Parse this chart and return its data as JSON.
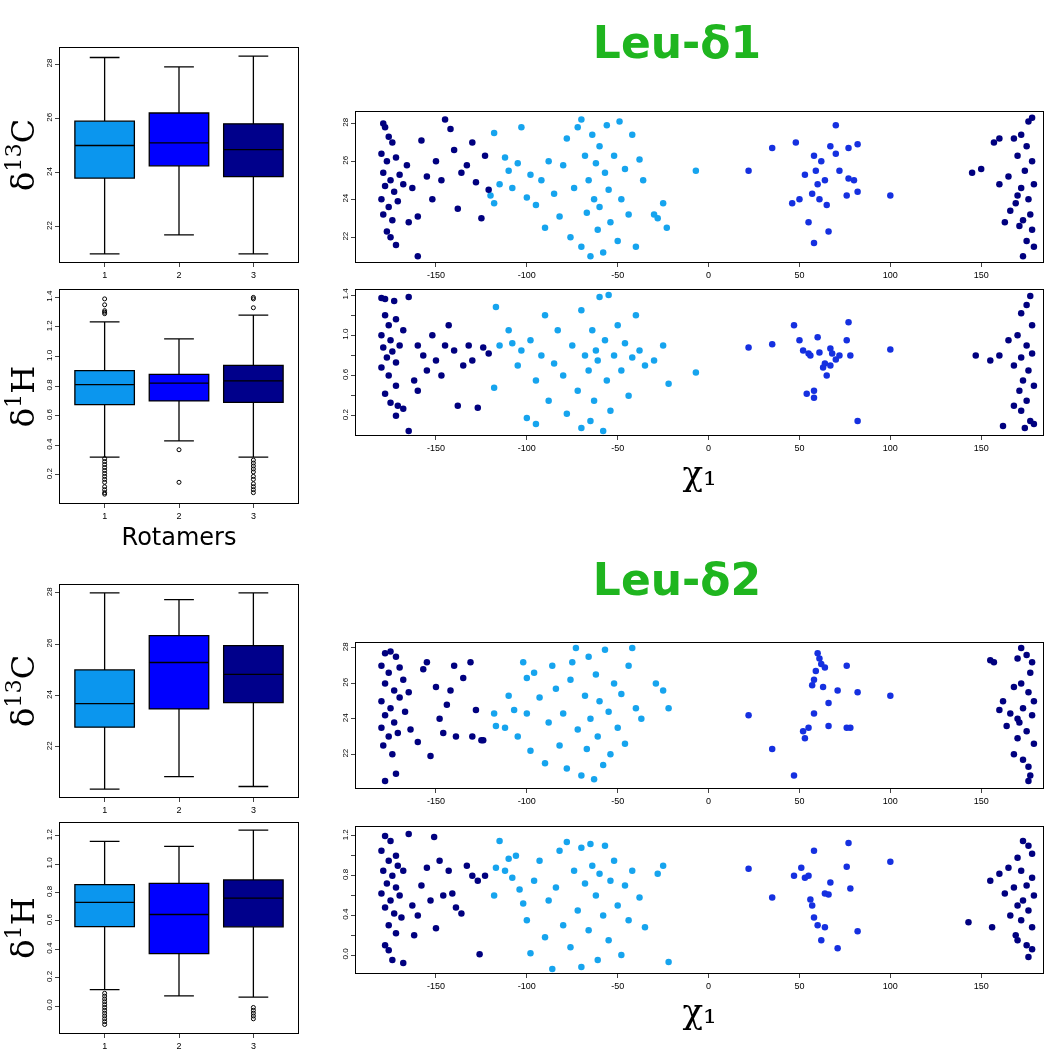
{
  "chart_data": [
    {
      "type": "box",
      "ylabel": "δ$^{13}$C",
      "categories": [
        "1",
        "2",
        "3"
      ],
      "colors": [
        "#0b96ee",
        "#0000ff",
        "#00008b"
      ],
      "ylim": [
        20.7,
        28.6
      ],
      "yticks": [
        22,
        24,
        26,
        28
      ],
      "boxes": [
        {
          "low": 21.0,
          "q1": 23.8,
          "median": 25.0,
          "q3": 25.9,
          "high": 28.25
        },
        {
          "low": 21.7,
          "q1": 24.25,
          "median": 25.1,
          "q3": 26.2,
          "high": 27.9
        },
        {
          "low": 21.0,
          "q1": 23.85,
          "median": 24.85,
          "q3": 25.8,
          "high": 28.3
        }
      ]
    },
    {
      "type": "scatter",
      "title": "Leu-δ1",
      "marker": "circle",
      "xlim": [
        -194,
        184
      ],
      "xticks": [
        -150,
        -100,
        -50,
        0,
        50,
        100,
        150
      ],
      "ylim": [
        20.7,
        28.6
      ],
      "yticks": [
        22,
        24,
        26,
        28
      ],
      "series": [
        {
          "color": "#16a4ee",
          "x": [
            -118,
            -115,
            -112,
            -110,
            -108,
            -105,
            -103,
            -100,
            -98,
            -95,
            -92,
            -90,
            -88,
            -85,
            -82,
            -80,
            -78,
            -76,
            -74,
            -72,
            -70,
            -70,
            -68,
            -67,
            -66,
            -65,
            -64,
            -63,
            -62,
            -61,
            -60,
            -60,
            -58,
            -57,
            -56,
            -55,
            -54,
            -52,
            -50,
            -49,
            -48,
            -46,
            -44,
            -42,
            -40,
            -38,
            -36,
            -30,
            -28,
            -25,
            -23,
            -120,
            -118,
            -7
          ],
          "values": [
            27.5,
            24.8,
            26.2,
            25.5,
            24.6,
            25.9,
            27.8,
            24.1,
            25.3,
            23.7,
            25.0,
            22.5,
            26.0,
            24.3,
            23.1,
            25.8,
            27.2,
            22.0,
            24.6,
            27.8,
            28.2,
            21.5,
            26.3,
            23.3,
            25.0,
            21.0,
            27.4,
            24.0,
            25.9,
            22.4,
            26.8,
            23.6,
            21.2,
            25.4,
            27.9,
            24.5,
            22.8,
            26.3,
            21.8,
            28.1,
            24.0,
            25.6,
            23.2,
            27.4,
            21.5,
            26.1,
            25.0,
            23.2,
            23.0,
            23.8,
            22.5,
            24.2,
            23.8,
            25.5
          ]
        },
        {
          "color": "#1530e0",
          "x": [
            22,
            35,
            48,
            46,
            50,
            53,
            55,
            57,
            58,
            58,
            59,
            60,
            61,
            62,
            64,
            65,
            66,
            67,
            70,
            70,
            72,
            76,
            77,
            77,
            80,
            82,
            82,
            100
          ],
          "values": [
            25.5,
            26.7,
            27.0,
            23.8,
            24.0,
            25.3,
            22.8,
            24.3,
            21.7,
            26.3,
            25.5,
            24.8,
            24.0,
            26.0,
            25.0,
            23.7,
            22.3,
            26.8,
            27.9,
            26.4,
            25.5,
            24.2,
            26.7,
            25.1,
            25.0,
            26.9,
            24.4,
            24.2
          ]
        },
        {
          "color": "#00007f",
          "x": [
            -179,
            -178,
            -176,
            -174,
            -180,
            -177,
            -172,
            -179,
            -175,
            -170,
            -178,
            -173,
            -168,
            -180,
            -176,
            -171,
            -179,
            -174,
            -177,
            -175,
            -172,
            -166,
            -163,
            -160,
            -158,
            -155,
            -152,
            -150,
            -147,
            -145,
            -142,
            -140,
            -138,
            -136,
            -133,
            -130,
            -128,
            -125,
            -123,
            -121,
            -160,
            -165,
            178,
            176,
            172,
            168,
            160,
            157,
            150,
            145,
            160,
            165,
            170,
            175,
            178,
            174,
            179,
            172,
            176,
            169,
            177,
            173,
            178,
            171,
            175,
            179,
            173,
            166,
            163,
            170
          ],
          "values": [
            28.0,
            27.8,
            27.3,
            27.0,
            26.4,
            26.0,
            26.2,
            25.4,
            25.0,
            25.3,
            24.7,
            24.4,
            24.8,
            24.0,
            23.6,
            23.9,
            23.2,
            22.9,
            22.3,
            22.0,
            21.6,
            25.8,
            24.6,
            23.1,
            27.1,
            25.2,
            24.0,
            26.0,
            25.0,
            28.2,
            27.7,
            26.6,
            23.5,
            25.4,
            25.8,
            27.0,
            24.9,
            23.0,
            26.3,
            24.5,
            21.0,
            22.8,
            28.3,
            28.1,
            27.4,
            27.2,
            27.2,
            27.0,
            25.6,
            25.4,
            24.8,
            25.2,
            26.3,
            26.8,
            26.0,
            25.5,
            24.8,
            24.6,
            24.0,
            23.8,
            23.2,
            22.9,
            22.4,
            22.6,
            21.8,
            21.5,
            21.0,
            23.4,
            22.8,
            24.2
          ]
        }
      ]
    },
    {
      "type": "box",
      "ylabel": "δ$^{1}$H",
      "xlabel": "Rotamers",
      "categories": [
        "1",
        "2",
        "3"
      ],
      "colors": [
        "#0b96ee",
        "#0000ff",
        "#00008b"
      ],
      "ylim": [
        0.01,
        1.45
      ],
      "yticks": [
        0.2,
        0.4,
        0.6,
        0.8,
        {
          "value": 1,
          "label": "1.0"
        },
        1.2,
        1.4
      ],
      "boxes": [
        {
          "low": 0.32,
          "q1": 0.675,
          "median": 0.81,
          "q3": 0.905,
          "high": 1.235,
          "outliers": [
            1.39,
            1.35,
            1.31,
            1.3,
            1.29,
            0.31,
            0.29,
            0.27,
            0.25,
            0.23,
            0.21,
            0.19,
            0.17,
            0.15,
            0.12,
            0.1,
            0.08,
            0.07
          ]
        },
        {
          "low": 0.43,
          "q1": 0.7,
          "median": 0.82,
          "q3": 0.88,
          "high": 1.12,
          "outliers": [
            0.37,
            0.15
          ]
        },
        {
          "low": 0.32,
          "q1": 0.69,
          "median": 0.835,
          "q3": 0.94,
          "high": 1.28,
          "outliers": [
            1.4,
            1.39,
            1.33,
            0.3,
            0.28,
            0.26,
            0.24,
            0.22,
            0.19,
            0.17,
            0.14,
            0.12,
            0.1,
            0.08
          ]
        }
      ]
    },
    {
      "type": "scatter",
      "xlabel": "χ₁",
      "marker": "circle",
      "xlim": [
        -194,
        184
      ],
      "xticks": [
        -150,
        -100,
        -50,
        0,
        50,
        100,
        150
      ],
      "ylim": [
        0.01,
        1.45
      ],
      "yticks": [
        0.2,
        {
          "value": 0.4,
          "label": null
        },
        0.6,
        {
          "value": 0.8,
          "label": null
        },
        {
          "value": 1,
          "label": "1.0"
        },
        {
          "value": 1.2,
          "label": null
        },
        1.4
      ],
      "series": [
        {
          "color": "#16a4ee",
          "x": [
            -118,
            -117,
            -115,
            -110,
            -108,
            -105,
            -103,
            -100,
            -98,
            -95,
            -92,
            -90,
            -88,
            -85,
            -83,
            -80,
            -78,
            -75,
            -72,
            -70,
            -70,
            -68,
            -66,
            -65,
            -64,
            -63,
            -62,
            -61,
            -60,
            -58,
            -57,
            -56,
            -55,
            -54,
            -52,
            -50,
            -48,
            -46,
            -44,
            -42,
            -40,
            -38,
            -35,
            -30,
            -25,
            -22,
            -7,
            -95
          ],
          "values": [
            0.48,
            1.28,
            0.9,
            1.05,
            0.92,
            0.7,
            0.85,
            0.18,
            0.95,
            0.55,
            0.8,
            1.2,
            0.35,
            0.72,
            1.05,
            0.6,
            0.22,
            0.9,
            0.45,
            1.25,
            0.08,
            0.8,
            0.65,
            0.15,
            1.05,
            0.35,
            0.85,
            0.75,
            1.38,
            0.05,
            0.95,
            0.55,
            1.4,
            0.25,
            0.8,
            1.1,
            0.65,
            0.92,
            0.4,
            0.78,
            1.2,
            0.85,
            0.7,
            0.75,
            0.9,
            0.52,
            0.63,
            0.12
          ]
        },
        {
          "color": "#1530e0",
          "x": [
            22,
            35,
            47,
            50,
            52,
            55,
            56,
            54,
            58,
            60,
            61,
            63,
            64,
            65,
            67,
            67,
            68,
            70,
            72,
            76,
            77,
            78,
            82,
            100,
            58
          ],
          "values": [
            0.88,
            0.91,
            1.1,
            0.95,
            0.85,
            0.82,
            0.8,
            0.42,
            0.45,
            0.98,
            0.83,
            0.68,
            0.72,
            0.6,
            0.87,
            0.7,
            0.82,
            0.76,
            0.8,
            0.95,
            1.13,
            0.8,
            0.15,
            0.86,
            0.38
          ]
        },
        {
          "color": "#00007f",
          "x": [
            -180,
            -178,
            -173,
            -165,
            -178,
            -176,
            -172,
            -180,
            -175,
            -168,
            -179,
            -174,
            -170,
            -177,
            -172,
            -180,
            -176,
            -172,
            -178,
            -175,
            -171,
            -168,
            -172,
            -165,
            -162,
            -160,
            -157,
            -155,
            -152,
            -150,
            -147,
            -145,
            -143,
            -140,
            -138,
            -135,
            -132,
            -130,
            -127,
            -124,
            -121,
            -160,
            177,
            175,
            172,
            178,
            170,
            165,
            160,
            155,
            147,
            175,
            178,
            172,
            168,
            176,
            173,
            179,
            171,
            175,
            168,
            172,
            177,
            162,
            174,
            179
          ],
          "values": [
            1.37,
            1.36,
            1.34,
            1.38,
            1.2,
            1.1,
            1.16,
            1.0,
            0.95,
            1.05,
            0.88,
            0.84,
            0.9,
            0.78,
            0.73,
            0.68,
            0.6,
            0.5,
            0.42,
            0.33,
            0.3,
            0.27,
            0.2,
            0.05,
            0.55,
            0.9,
            0.8,
            0.65,
            1.0,
            0.75,
            0.6,
            0.9,
            1.1,
            0.85,
            0.3,
            0.7,
            0.9,
            0.75,
            0.28,
            0.88,
            0.82,
            0.45,
            1.39,
            1.3,
            1.22,
            1.1,
            1.0,
            0.95,
            0.8,
            0.75,
            0.8,
            0.9,
            0.82,
            0.78,
            0.7,
            0.65,
            0.55,
            0.5,
            0.45,
            0.35,
            0.3,
            0.25,
            0.15,
            0.1,
            0.08,
            0.12
          ]
        }
      ]
    },
    {
      "type": "box",
      "ylabel": "δ$^{13}$C",
      "categories": [
        "1",
        "2",
        "3"
      ],
      "colors": [
        "#0b96ee",
        "#0000ff",
        "#00008b"
      ],
      "ylim": [
        20.05,
        28.31
      ],
      "yticks": [
        22,
        24,
        26,
        28
      ],
      "boxes": [
        {
          "low": 20.36,
          "q1": 22.77,
          "median": 23.69,
          "q3": 25.0,
          "high": 28.0
        },
        {
          "low": 20.84,
          "q1": 23.48,
          "median": 25.29,
          "q3": 26.34,
          "high": 27.74
        },
        {
          "low": 20.46,
          "q1": 23.73,
          "median": 24.83,
          "q3": 25.95,
          "high": 28.0
        }
      ]
    },
    {
      "type": "scatter",
      "title": "Leu-δ2",
      "marker": "circle",
      "xlim": [
        -194,
        184
      ],
      "xticks": [
        -150,
        -100,
        -50,
        0,
        50,
        100,
        150
      ],
      "ylim": [
        20.1,
        28.28
      ],
      "yticks": [
        22,
        24,
        26,
        28
      ],
      "series": [
        {
          "color": "#16a4ee",
          "x": [
            -118,
            -117,
            -112,
            -110,
            -107,
            -105,
            -102,
            -100,
            -98,
            -96,
            -93,
            -90,
            -88,
            -86,
            -84,
            -82,
            -80,
            -78,
            -76,
            -75,
            -73,
            -72,
            -70,
            -68,
            -67,
            -66,
            -65,
            -63,
            -62,
            -61,
            -60,
            -58,
            -57,
            -55,
            -54,
            -52,
            -50,
            -48,
            -46,
            -44,
            -42,
            -40,
            -37,
            -29,
            -25,
            -22,
            -100
          ],
          "values": [
            24.3,
            23.6,
            23.5,
            25.3,
            24.5,
            23.0,
            27.2,
            24.3,
            22.2,
            26.6,
            25.2,
            21.5,
            23.8,
            27.0,
            25.7,
            22.5,
            24.3,
            21.2,
            26.2,
            27.2,
            28.0,
            23.4,
            20.8,
            25.3,
            22.3,
            27.5,
            24.0,
            20.6,
            26.5,
            23.0,
            25.0,
            21.4,
            27.9,
            24.4,
            22.0,
            26.0,
            23.5,
            25.4,
            22.6,
            27.0,
            28.0,
            24.6,
            24.0,
            26.0,
            25.6,
            24.6,
            26.3
          ]
        },
        {
          "color": "#1530e0",
          "x": [
            22,
            35,
            47,
            52,
            53,
            55,
            57,
            58,
            58,
            59,
            60,
            61,
            62,
            63,
            64,
            66,
            66,
            71,
            76,
            76,
            78,
            82,
            100
          ],
          "values": [
            24.2,
            22.3,
            20.8,
            23.3,
            22.9,
            23.5,
            25.9,
            24.3,
            26.2,
            26.7,
            27.7,
            27.4,
            27.1,
            25.8,
            26.9,
            24.9,
            23.6,
            25.6,
            23.5,
            27.0,
            23.5,
            25.5,
            25.3
          ]
        },
        {
          "color": "#00007f",
          "x": [
            -178,
            -175,
            -172,
            -180,
            -176,
            -170,
            -178,
            -173,
            -168,
            -180,
            -175,
            -170,
            -178,
            -173,
            -167,
            -180,
            -176,
            -171,
            -179,
            -174,
            -178,
            -172,
            -164,
            -160,
            -157,
            -155,
            -153,
            -150,
            -148,
            -146,
            -144,
            -142,
            -140,
            -139,
            -135,
            -131,
            -130,
            -128,
            -125,
            -124,
            -165,
            172,
            175,
            178,
            170,
            155,
            157,
            177,
            172,
            176,
            168,
            179,
            173,
            160,
            162,
            166,
            178,
            171,
            175,
            170,
            179,
            168,
            173,
            176,
            177,
            176,
            164,
            170
          ],
          "values": [
            27.7,
            27.8,
            27.5,
            27.0,
            26.6,
            26.9,
            26.0,
            25.6,
            26.2,
            25.0,
            24.6,
            25.2,
            24.2,
            23.8,
            24.4,
            23.5,
            23.0,
            23.2,
            22.5,
            22.0,
            20.5,
            20.9,
            23.4,
            22.7,
            26.8,
            27.2,
            21.9,
            25.8,
            24.0,
            23.2,
            24.8,
            25.6,
            27.0,
            23.0,
            26.3,
            27.2,
            23.0,
            24.5,
            22.8,
            22.8,
            25.5,
            28.0,
            27.6,
            27.2,
            27.4,
            27.3,
            27.2,
            26.6,
            26.0,
            25.5,
            25.8,
            25.0,
            24.6,
            24.5,
            25.0,
            24.3,
            24.2,
            23.8,
            23.3,
            22.9,
            22.6,
            22.0,
            21.7,
            21.3,
            20.8,
            20.5,
            23.6,
            24.0
          ]
        }
      ]
    },
    {
      "type": "box",
      "ylabel": "δ$^{1}$H",
      "categories": [
        "1",
        "2",
        "3"
      ],
      "colors": [
        "#0b96ee",
        "#0000ff",
        "#00008b"
      ],
      "ylim": [
        -0.19,
        1.29
      ],
      "yticks": [
        {
          "value": 0,
          "label": "0.0"
        },
        0.2,
        0.4,
        0.6,
        0.8,
        {
          "value": 1,
          "label": "1.0"
        },
        1.2
      ],
      "boxes": [
        {
          "low": 0.116,
          "q1": 0.56,
          "median": 0.73,
          "q3": 0.856,
          "high": 1.16,
          "outliers": [
            0.09,
            0.07,
            0.05,
            0.03,
            0.01,
            -0.01,
            -0.03,
            -0.05,
            -0.07,
            -0.09,
            -0.11,
            -0.13
          ]
        },
        {
          "low": 0.072,
          "q1": 0.37,
          "median": 0.645,
          "q3": 0.865,
          "high": 1.125
        },
        {
          "low": 0.063,
          "q1": 0.558,
          "median": 0.76,
          "q3": 0.889,
          "high": 1.24,
          "outliers": [
            -0.01,
            -0.03,
            -0.05,
            -0.07,
            -0.09
          ]
        }
      ]
    },
    {
      "type": "scatter",
      "xlabel": "χ₁",
      "marker": "circle",
      "xlim": [
        -194,
        184
      ],
      "xticks": [
        -150,
        -100,
        -50,
        0,
        50,
        100,
        150
      ],
      "ylim": [
        -0.18,
        1.29
      ],
      "yticks": [
        {
          "value": 0,
          "label": "0.0"
        },
        {
          "value": 0.2,
          "label": null
        },
        0.4,
        {
          "value": 0.6,
          "label": null
        },
        0.8,
        {
          "value": 1.0,
          "label": null
        },
        1.2
      ],
      "series": [
        {
          "color": "#16a4ee",
          "x": [
            -118,
            -117,
            -115,
            -112,
            -110,
            -108,
            -106,
            -104,
            -102,
            -100,
            -98,
            -96,
            -93,
            -90,
            -88,
            -86,
            -84,
            -82,
            -80,
            -78,
            -76,
            -74,
            -72,
            -70,
            -70,
            -68,
            -66,
            -65,
            -64,
            -62,
            -61,
            -60,
            -58,
            -57,
            -55,
            -54,
            -52,
            -50,
            -48,
            -46,
            -44,
            -42,
            -38,
            -35,
            -28,
            -25,
            -22
          ],
          "values": [
            0.6,
            0.88,
            1.15,
            0.85,
            0.97,
            0.78,
            1.0,
            0.66,
            0.52,
            0.35,
            0.02,
            0.75,
            0.95,
            0.18,
            0.55,
            -0.14,
            0.68,
            1.05,
            0.3,
            1.14,
            0.08,
            0.85,
            0.45,
            1.08,
            -0.12,
            0.72,
            0.25,
            1.12,
            0.9,
            0.6,
            -0.05,
            0.82,
            0.4,
            1.1,
            0.15,
            0.75,
            0.95,
            0.5,
            0.0,
            0.7,
            0.35,
            0.85,
            0.58,
            0.28,
            0.82,
            0.9,
            -0.07
          ]
        },
        {
          "color": "#1530e0",
          "x": [
            22,
            35,
            47,
            51,
            53,
            55,
            56,
            57,
            58,
            58,
            60,
            62,
            64,
            64,
            66,
            67,
            71,
            76,
            77,
            78,
            82,
            100
          ],
          "values": [
            0.87,
            0.58,
            0.8,
            0.88,
            0.78,
            0.8,
            0.56,
            0.5,
            0.38,
            1.05,
            0.3,
            0.15,
            0.28,
            0.62,
            0.61,
            0.73,
            0.07,
            0.89,
            1.13,
            0.67,
            0.24,
            0.94
          ]
        },
        {
          "color": "#00007f",
          "x": [
            -178,
            -175,
            -172,
            -180,
            -165,
            -176,
            -171,
            -179,
            -174,
            -168,
            -177,
            -172,
            -180,
            -175,
            -170,
            -178,
            -173,
            -169,
            -176,
            -172,
            -178,
            -176,
            -174,
            -168,
            -163,
            -160,
            -158,
            -155,
            -153,
            -151,
            -150,
            -148,
            -146,
            -143,
            -141,
            -139,
            -136,
            -133,
            -130,
            -127,
            -126,
            -123,
            -162,
            173,
            176,
            178,
            170,
            165,
            160,
            155,
            172,
            178,
            175,
            168,
            179,
            173,
            163,
            166,
            170,
            176,
            172,
            178,
            169,
            175,
            178,
            176,
            156,
            143,
            170
          ],
          "values": [
            1.2,
            1.15,
            1.0,
            1.05,
            1.22,
            0.95,
            0.9,
            0.85,
            0.8,
            0.85,
            0.72,
            0.68,
            0.62,
            0.55,
            0.6,
            0.48,
            0.42,
            0.38,
            0.3,
            0.22,
            0.1,
            0.05,
            -0.05,
            -0.08,
            0.5,
            0.4,
            0.7,
            0.88,
            0.55,
            1.19,
            0.27,
            0.95,
            0.6,
            0.85,
            0.62,
            0.48,
            0.42,
            0.9,
            0.8,
            0.75,
            0.01,
            0.8,
            0.2,
            1.15,
            1.1,
            1.02,
            0.98,
            0.88,
            0.82,
            0.75,
            0.85,
            0.78,
            0.7,
            0.68,
            0.6,
            0.55,
            0.62,
            0.4,
            0.5,
            0.45,
            0.35,
            0.28,
            0.2,
            0.1,
            0.06,
            -0.02,
            0.28,
            0.33,
            0.15
          ]
        }
      ]
    }
  ]
}
